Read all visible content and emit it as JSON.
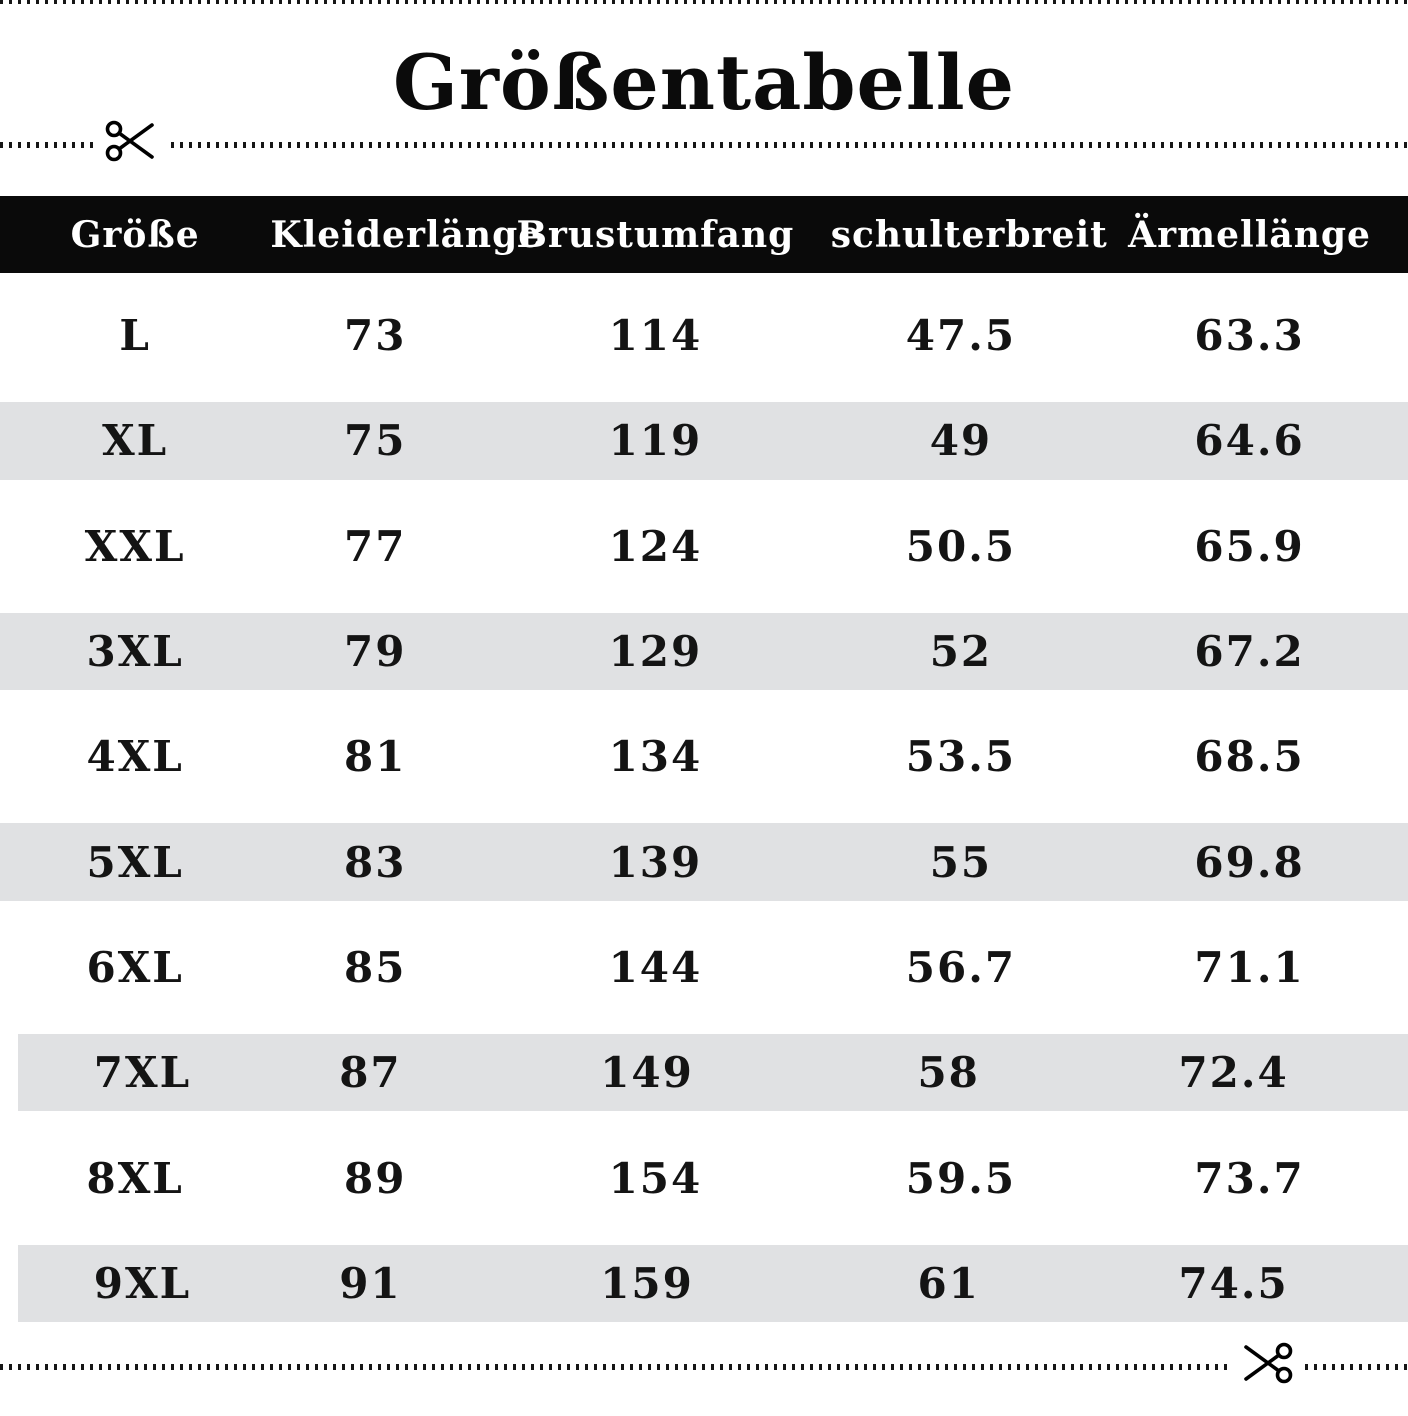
{
  "title": "Größentabelle",
  "icons": {
    "top_cut": "scissors-icon",
    "bottom_cut": "scissors-icon"
  },
  "colors": {
    "header_bg": "#0a0a0a",
    "header_text": "#ffffff",
    "row_alt_bg": "#e0e1e3",
    "text": "#141414",
    "background": "#ffffff"
  },
  "chart_data": {
    "type": "table",
    "title": "Größentabelle",
    "columns": [
      "Größe",
      "Kleiderlänge",
      "Brustumfang",
      "schulterbreit",
      "Ärmellänge"
    ],
    "rows": [
      {
        "size": "L",
        "values": [
          "73",
          "114",
          "47.5",
          "63.3"
        ]
      },
      {
        "size": "XL",
        "values": [
          "75",
          "119",
          "49",
          "64.6"
        ]
      },
      {
        "size": "XXL",
        "values": [
          "77",
          "124",
          "50.5",
          "65.9"
        ]
      },
      {
        "size": "3XL",
        "values": [
          "79",
          "129",
          "52",
          "67.2"
        ]
      },
      {
        "size": "4XL",
        "values": [
          "81",
          "134",
          "53.5",
          "68.5"
        ]
      },
      {
        "size": "5XL",
        "values": [
          "83",
          "139",
          "55",
          "69.8"
        ]
      },
      {
        "size": "6XL",
        "values": [
          "85",
          "144",
          "56.7",
          "71.1"
        ]
      },
      {
        "size": "7XL",
        "values": [
          "87",
          "149",
          "58",
          "72.4"
        ]
      },
      {
        "size": "8XL",
        "values": [
          "89",
          "154",
          "59.5",
          "73.7"
        ]
      },
      {
        "size": "9XL",
        "values": [
          "91",
          "159",
          "61",
          "74.5"
        ]
      }
    ]
  }
}
